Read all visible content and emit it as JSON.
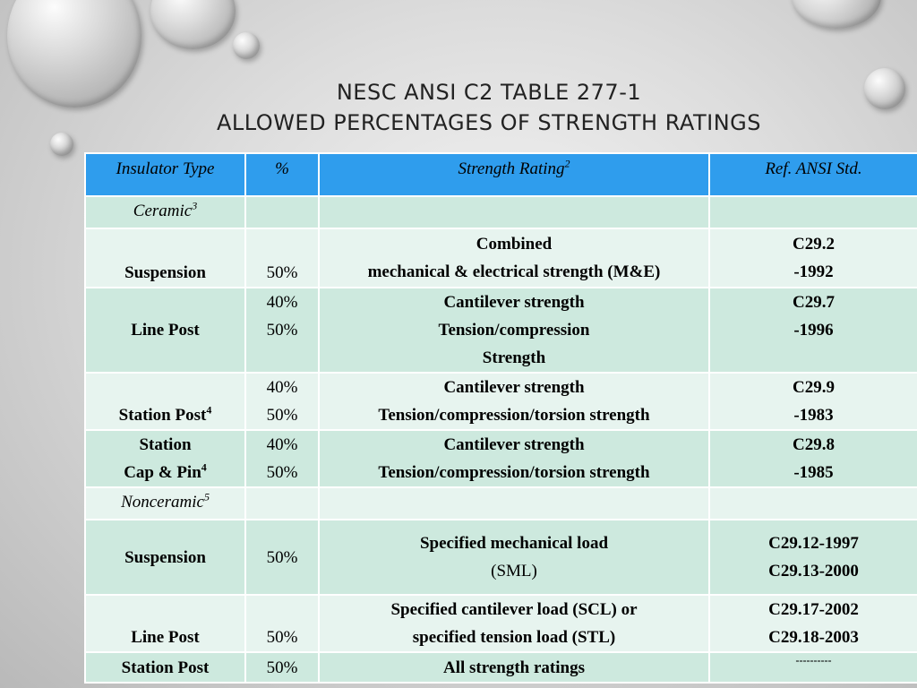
{
  "slide": {
    "title_line1": "NESC ANSI C2 TABLE 277-1",
    "title_line2": "ALLOWED PERCENTAGES OF STRENGTH RATINGS"
  },
  "table": {
    "headers": {
      "type": "Insulator Type",
      "pct": "%",
      "rating": "Strength  Rating",
      "rating_sup": "2",
      "ref": "Ref. ANSI Std."
    },
    "ceramic": {
      "label": "Ceramic",
      "sup": "3"
    },
    "suspension1": {
      "type": "Suspension",
      "pct": "50%",
      "rating_l1": "Combined",
      "rating_l2": "mechanical & electrical strength (M&E)",
      "ref_l1": "C29.2",
      "ref_l2": "-1992"
    },
    "linepost1": {
      "type": "Line Post",
      "pct_l1": "40%",
      "pct_l2": "50%",
      "rating_l1": "Cantilever strength",
      "rating_l2": "Tension/compression",
      "rating_l3": "Strength",
      "ref_l1": "C29.7",
      "ref_l2": "-1996"
    },
    "stationpost1": {
      "type": "Station Post",
      "type_sup": "4",
      "pct_l1": "40%",
      "pct_l2": "50%",
      "rating_l1": "Cantilever strength",
      "rating_l2": "Tension/compression/torsion strength",
      "ref_l1": "C29.9",
      "ref_l2": "-1983"
    },
    "capandpin": {
      "type_l1": "Station",
      "type_l2": "Cap & Pin",
      "type_sup": "4",
      "pct_l1": "40%",
      "pct_l2": "50%",
      "rating_l1": "Cantilever strength",
      "rating_l2": "Tension/compression/torsion strength",
      "ref_l1": "C29.8",
      "ref_l2": "-1985"
    },
    "nonceramic": {
      "label": "Nonceramic",
      "sup": "5"
    },
    "suspension2": {
      "type": "Suspension",
      "pct": "50%",
      "rating_l1": "Specified mechanical load",
      "rating_l2": "(SML)",
      "ref_l1": "C29.12-1997",
      "ref_l2": "C29.13-2000"
    },
    "linepost2": {
      "type": "Line Post",
      "pct": "50%",
      "rating_l1": "Specified cantilever load (SCL) or",
      "rating_l2": "specified tension load (STL)",
      "ref_l1": "C29.17-2002",
      "ref_l2": "C29.18-2003"
    },
    "stationpost2": {
      "type": "Station Post",
      "pct": "50%",
      "rating": "All strength ratings",
      "ref": "----------"
    }
  },
  "colors": {
    "header_bg": "#2f9ded",
    "band_bg": "#cde9de",
    "light_bg": "#e7f4ef"
  }
}
